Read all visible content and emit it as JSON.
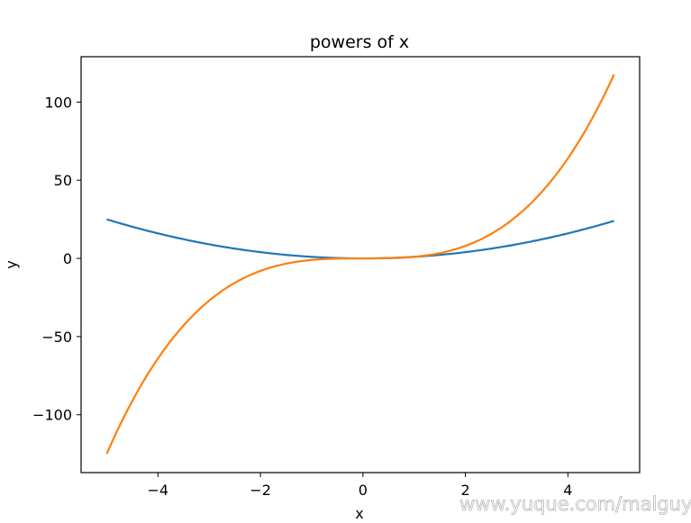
{
  "chart_data": {
    "type": "line",
    "title": "powers of x",
    "xlabel": "x",
    "ylabel": "y",
    "xlim": [
      -5.5,
      5.4
    ],
    "ylim": [
      -137,
      129
    ],
    "grid": false,
    "x_ticks": [
      -4,
      -2,
      0,
      2,
      4
    ],
    "x_tick_labels": [
      "−4",
      "−2",
      "0",
      "2",
      "4"
    ],
    "y_ticks": [
      -100,
      -50,
      0,
      50,
      100
    ],
    "y_tick_labels": [
      "−100",
      "−50",
      "0",
      "50",
      "100"
    ],
    "x_range": [
      -5,
      4.9
    ],
    "series": [
      {
        "color": "#1f77b4",
        "formula": "x^2",
        "x": [
          -5,
          -4,
          -3,
          -2,
          -1,
          0,
          1,
          2,
          3,
          4,
          4.9
        ],
        "y": [
          25,
          16,
          9,
          4,
          1,
          0,
          1,
          4,
          9,
          16,
          24.01
        ]
      },
      {
        "color": "#ff7f0e",
        "formula": "x^3",
        "x": [
          -5,
          -4,
          -3,
          -2,
          -1,
          0,
          1,
          2,
          3,
          4,
          4.9
        ],
        "y": [
          -125,
          -64,
          -27,
          -8,
          -1,
          0,
          1,
          8,
          27,
          64,
          117.649
        ]
      }
    ]
  },
  "watermark": "www.yuque.com/malguy"
}
